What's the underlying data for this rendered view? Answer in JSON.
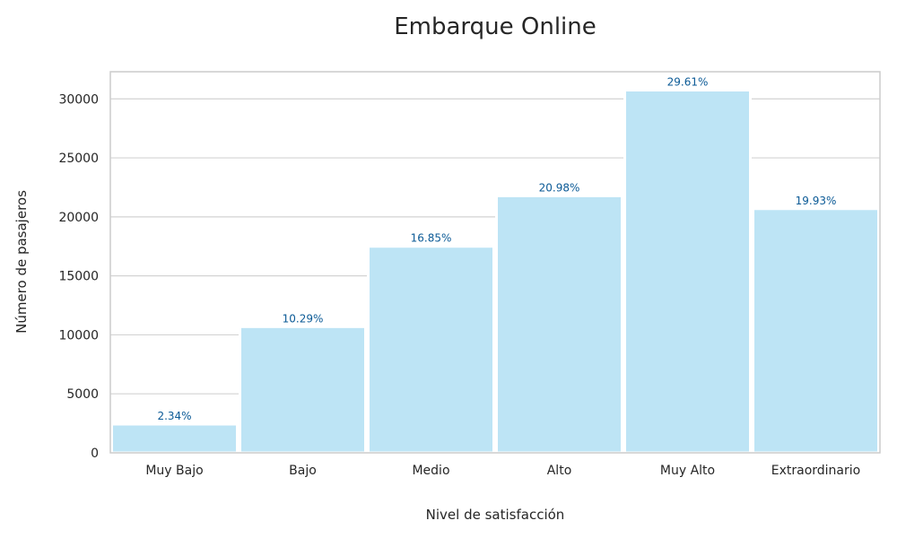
{
  "chart_data": {
    "type": "bar",
    "title": "Embarque Online",
    "xlabel": "Nivel de satisfacción",
    "ylabel": "Número de pasajeros",
    "categories": [
      "Muy Bajo",
      "Bajo",
      "Medio",
      "Alto",
      "Muy Alto",
      "Extraordinario"
    ],
    "values": [
      2430,
      10690,
      17500,
      21780,
      30740,
      20690
    ],
    "data_labels": [
      "2.34%",
      "10.29%",
      "16.85%",
      "20.98%",
      "29.61%",
      "19.93%"
    ],
    "ylim": [
      0,
      32300
    ],
    "yticks": [
      0,
      5000,
      10000,
      15000,
      20000,
      25000,
      30000
    ],
    "grid": true,
    "legend": "none",
    "colors": {
      "bar": "#bde4f5",
      "data_label": "#0b5a96",
      "grid": "#d3d3d3",
      "frame": "#cccccc"
    }
  }
}
